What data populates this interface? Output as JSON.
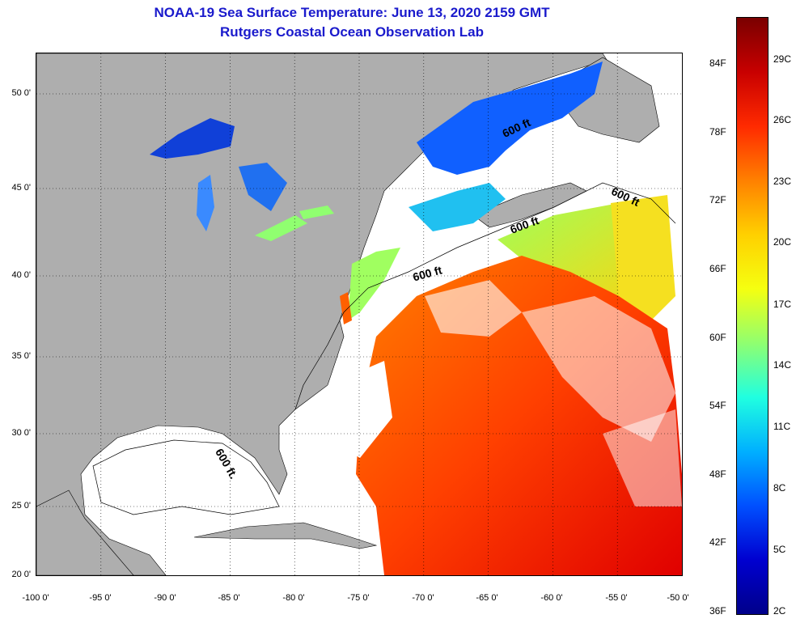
{
  "title": {
    "line1": "NOAA-19 Sea Surface Temperature:  June 13, 2020 2159 GMT",
    "line2": "Rutgers Coastal Ocean Observation Lab"
  },
  "map": {
    "lon_ticks": [
      "-100 0'",
      "-95 0'",
      "-90 0'",
      "-85 0'",
      "-80 0'",
      "-75 0'",
      "-70 0'",
      "-65 0'",
      "-60 0'",
      "-55 0'",
      "-50 0'"
    ],
    "lat_ticks": [
      "50 0'",
      "45 0'",
      "40 0'",
      "35 0'",
      "30 0'",
      "25 0'",
      "20 0'"
    ],
    "lon_range": [
      -100,
      -50
    ],
    "lat_range": [
      20,
      52.5
    ],
    "land_color": "#aeaeae",
    "cloud_color": "#ffffff",
    "contour_labels": [
      "600 ft.",
      "600 ft",
      "600 ft",
      "600 ft",
      "600 ft"
    ]
  },
  "colorbar": {
    "fahrenheit_labels": [
      "84F",
      "78F",
      "72F",
      "66F",
      "60F",
      "54F",
      "48F",
      "42F",
      "36F"
    ],
    "celsius_labels": [
      "29C",
      "26C",
      "23C",
      "20C",
      "17C",
      "14C",
      "11C",
      "8C",
      "5C",
      "2C"
    ],
    "colors": [
      "#7a0000",
      "#c80000",
      "#ff2a00",
      "#ff8000",
      "#ffd000",
      "#f5ff10",
      "#90ff70",
      "#20ffe0",
      "#00b0ff",
      "#0050ff",
      "#0000d0",
      "#00008a"
    ]
  }
}
